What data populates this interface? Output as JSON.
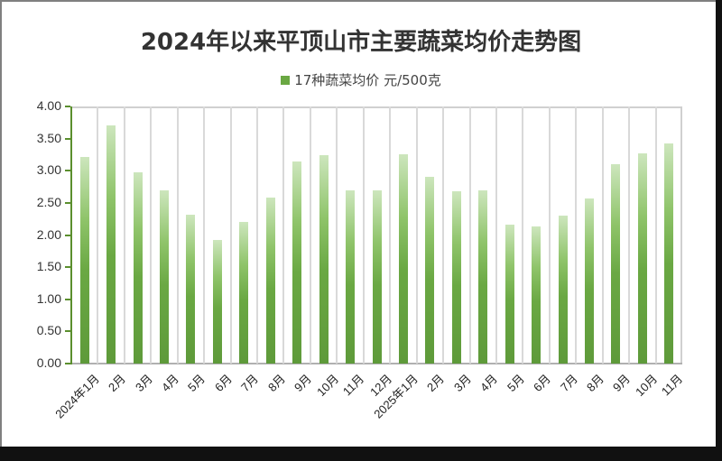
{
  "title": "2024年以来平顶山市主要蔬菜均价走势图",
  "legend": {
    "label": "17种蔬菜均价 元/500克",
    "color": "#6aa843"
  },
  "colors": {
    "bar_top": "#cde6bd",
    "bar_bottom": "#5e9a3a",
    "axis": "#5b8f2e",
    "grid": "#d9d9d9"
  },
  "y_axis": {
    "ticks": [
      "0.00",
      "0.50",
      "1.00",
      "1.50",
      "2.00",
      "2.50",
      "3.00",
      "3.50",
      "4.00"
    ]
  },
  "chart_data": {
    "type": "bar",
    "title": "2024年以来平顶山市主要蔬菜均价走势图",
    "xlabel": "",
    "ylabel": "",
    "ylim": [
      0,
      4
    ],
    "grid": "vertical",
    "legend_position": "top",
    "categories": [
      "2024年1月",
      "2月",
      "3月",
      "4月",
      "5月",
      "6月",
      "7月",
      "8月",
      "9月",
      "10月",
      "11月",
      "12月",
      "2025年1月",
      "2月",
      "3月",
      "4月",
      "5月",
      "6月",
      "7月",
      "8月",
      "9月",
      "10月",
      "11月"
    ],
    "series": [
      {
        "name": "17种蔬菜均价 元/500克",
        "values": [
          3.21,
          3.7,
          2.97,
          2.7,
          2.32,
          1.92,
          2.2,
          2.58,
          3.14,
          3.24,
          2.7,
          2.7,
          3.26,
          2.91,
          2.68,
          2.7,
          2.16,
          2.13,
          2.3,
          2.57,
          3.1,
          3.27,
          3.42
        ]
      }
    ]
  }
}
